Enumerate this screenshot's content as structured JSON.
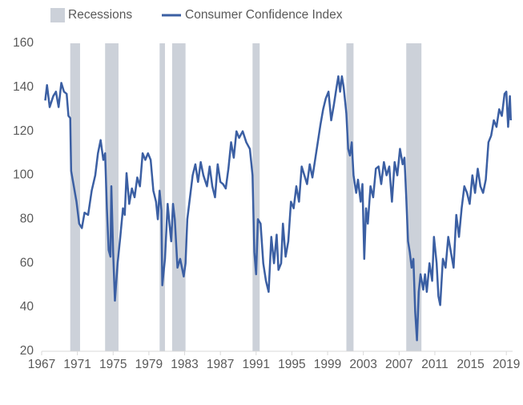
{
  "chart_data": {
    "type": "line",
    "x": [
      1967.4,
      1967.6,
      1967.9,
      1968.3,
      1968.6,
      1968.9,
      1969.2,
      1969.5,
      1969.8,
      1970.0,
      1970.2,
      1970.3,
      1970.6,
      1970.9,
      1971.2,
      1971.5,
      1971.8,
      1972.2,
      1972.6,
      1973.0,
      1973.3,
      1973.6,
      1973.9,
      1974.1,
      1974.3,
      1974.5,
      1974.7,
      1974.8,
      1975.0,
      1975.2,
      1975.5,
      1975.8,
      1976.1,
      1976.3,
      1976.5,
      1976.8,
      1977.1,
      1977.4,
      1977.7,
      1978.0,
      1978.3,
      1978.6,
      1978.9,
      1979.2,
      1979.5,
      1979.8,
      1980.0,
      1980.2,
      1980.4,
      1980.5,
      1980.8,
      1981.1,
      1981.3,
      1981.5,
      1981.7,
      1981.9,
      1982.2,
      1982.5,
      1982.9,
      1983.1,
      1983.3,
      1983.6,
      1983.9,
      1984.2,
      1984.5,
      1984.8,
      1985.1,
      1985.5,
      1985.8,
      1986.1,
      1986.4,
      1986.7,
      1987.0,
      1987.3,
      1987.6,
      1987.9,
      1988.2,
      1988.5,
      1988.8,
      1989.1,
      1989.5,
      1989.9,
      1990.3,
      1990.6,
      1990.8,
      1991.0,
      1991.2,
      1991.5,
      1991.8,
      1992.1,
      1992.4,
      1992.7,
      1993.0,
      1993.3,
      1993.5,
      1993.8,
      1994.0,
      1994.3,
      1994.6,
      1994.9,
      1995.2,
      1995.5,
      1995.8,
      1996.1,
      1996.4,
      1996.7,
      1997.0,
      1997.3,
      1997.6,
      1997.9,
      1998.2,
      1998.5,
      1998.8,
      1999.1,
      1999.4,
      1999.7,
      2000.0,
      2000.2,
      2000.4,
      2000.6,
      2000.8,
      2001.1,
      2001.3,
      2001.5,
      2001.7,
      2001.9,
      2002.2,
      2002.4,
      2002.7,
      2002.9,
      2003.1,
      2003.3,
      2003.5,
      2003.8,
      2004.1,
      2004.4,
      2004.7,
      2005.0,
      2005.3,
      2005.6,
      2005.9,
      2006.2,
      2006.5,
      2006.8,
      2007.1,
      2007.4,
      2007.6,
      2007.8,
      2008.0,
      2008.2,
      2008.4,
      2008.6,
      2008.8,
      2009.0,
      2009.2,
      2009.4,
      2009.7,
      2009.9,
      2010.1,
      2010.4,
      2010.7,
      2010.9,
      2011.2,
      2011.4,
      2011.6,
      2011.9,
      2012.2,
      2012.5,
      2012.8,
      2013.1,
      2013.4,
      2013.7,
      2014.0,
      2014.3,
      2014.6,
      2014.9,
      2015.2,
      2015.5,
      2015.8,
      2016.1,
      2016.4,
      2016.7,
      2017.0,
      2017.3,
      2017.6,
      2017.9,
      2018.2,
      2018.5,
      2018.8,
      2019.0,
      2019.2,
      2019.4,
      2019.5
    ],
    "series": [
      {
        "name": "Consumer Confidence Index",
        "color": "#3b5fa3",
        "values": [
          134,
          141,
          131,
          136,
          138,
          131,
          142,
          138,
          137,
          127,
          126,
          102,
          95,
          88,
          78,
          76,
          83,
          82,
          93,
          100,
          110,
          116,
          107,
          110,
          85,
          66,
          63,
          95,
          65,
          43,
          60,
          72,
          85,
          82,
          101,
          87,
          94,
          90,
          99,
          95,
          110,
          107,
          110,
          107,
          93,
          88,
          80,
          93,
          84,
          50,
          62,
          87,
          78,
          70,
          87,
          80,
          58,
          62,
          54,
          60,
          80,
          90,
          100,
          105,
          97,
          106,
          100,
          95,
          104,
          95,
          90,
          105,
          97,
          96,
          94,
          103,
          115,
          108,
          120,
          117,
          120,
          115,
          112,
          100,
          65,
          55,
          80,
          78,
          60,
          52,
          47,
          72,
          60,
          73,
          57,
          60,
          78,
          63,
          70,
          88,
          85,
          95,
          88,
          104,
          100,
          96,
          105,
          99,
          107,
          115,
          123,
          130,
          135,
          138,
          125,
          132,
          140,
          145,
          138,
          145,
          140,
          128,
          112,
          109,
          115,
          100,
          92,
          98,
          88,
          96,
          62,
          85,
          78,
          95,
          90,
          103,
          104,
          96,
          106,
          100,
          104,
          88,
          106,
          100,
          112,
          105,
          108,
          90,
          70,
          65,
          58,
          62,
          38,
          25,
          47,
          55,
          48,
          55,
          47,
          60,
          52,
          72,
          60,
          45,
          41,
          62,
          58,
          72,
          65,
          58,
          82,
          72,
          85,
          95,
          92,
          87,
          100,
          92,
          103,
          95,
          92,
          98,
          115,
          118,
          125,
          122,
          130,
          127,
          137,
          138,
          122,
          136,
          125
        ]
      }
    ],
    "recessions": {
      "name": "Recessions",
      "color": "#ccd1d9",
      "ranges": [
        [
          1970.2,
          1971.3
        ],
        [
          1974.1,
          1975.6
        ],
        [
          1980.2,
          1980.8
        ],
        [
          1981.6,
          1983.1
        ],
        [
          1990.6,
          1991.4
        ],
        [
          2001.1,
          2001.9
        ],
        [
          2007.8,
          2009.5
        ]
      ]
    },
    "xlim": [
      1967,
      2019.7
    ],
    "ylim": [
      20,
      160
    ],
    "xticks": [
      1967,
      1971,
      1975,
      1979,
      1983,
      1987,
      1991,
      1995,
      1999,
      2003,
      2007,
      2011,
      2015,
      2019
    ],
    "yticks": [
      20,
      40,
      60,
      80,
      100,
      120,
      140,
      160
    ]
  }
}
